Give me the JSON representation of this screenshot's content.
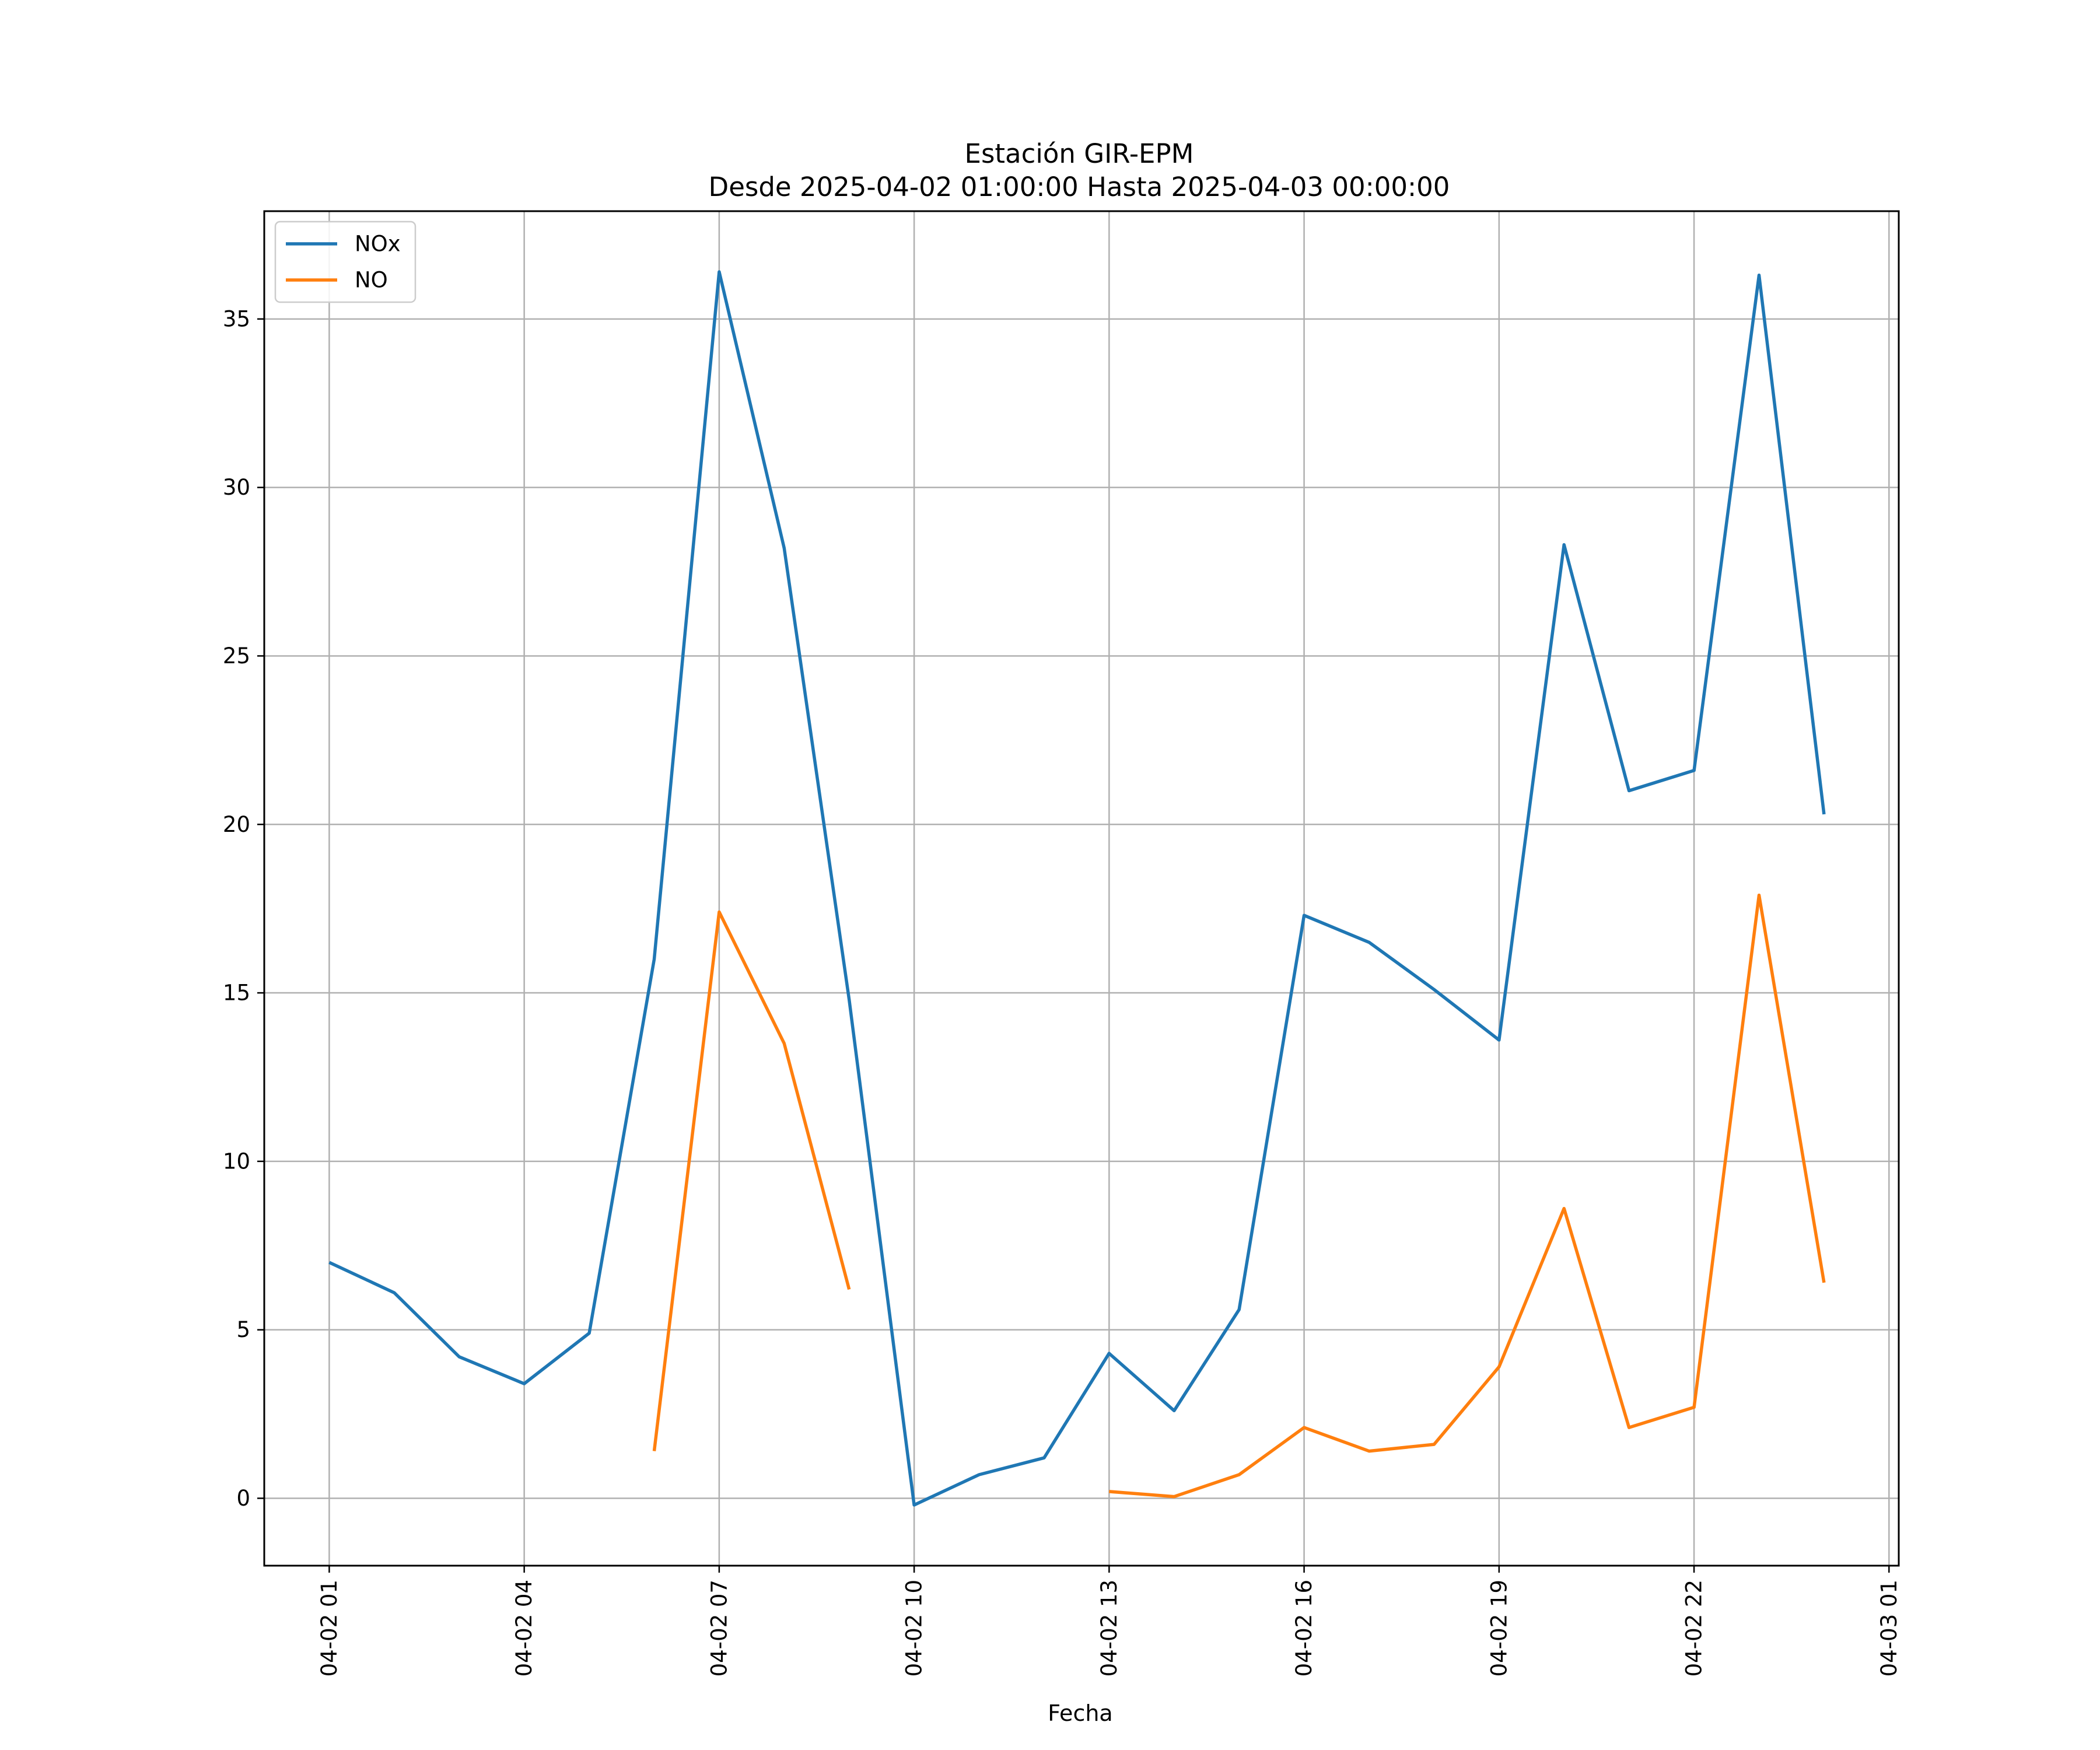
{
  "chart_data": {
    "type": "line",
    "title": "Estación GIR-EPM",
    "subtitle": "Desde 2025-04-02 01:00:00 Hasta 2025-04-03 00:00:00",
    "xlabel": "Fecha",
    "ylabel": "",
    "x": [
      "2025-04-02 01:00",
      "2025-04-02 02:00",
      "2025-04-02 03:00",
      "2025-04-02 04:00",
      "2025-04-02 05:00",
      "2025-04-02 06:00",
      "2025-04-02 07:00",
      "2025-04-02 08:00",
      "2025-04-02 09:00",
      "2025-04-02 10:00",
      "2025-04-02 11:00",
      "2025-04-02 12:00",
      "2025-04-02 13:00",
      "2025-04-02 14:00",
      "2025-04-02 15:00",
      "2025-04-02 16:00",
      "2025-04-02 17:00",
      "2025-04-02 18:00",
      "2025-04-02 19:00",
      "2025-04-02 20:00",
      "2025-04-02 21:00",
      "2025-04-02 22:00",
      "2025-04-02 23:00",
      "2025-04-03 00:00"
    ],
    "series": [
      {
        "name": "NOx",
        "color": "#1f77b4",
        "values": [
          7.0,
          6.1,
          4.2,
          3.4,
          4.9,
          16.0,
          36.4,
          28.2,
          14.8,
          -0.2,
          0.7,
          1.2,
          4.3,
          2.6,
          5.6,
          17.3,
          16.5,
          15.1,
          13.6,
          28.3,
          21.0,
          21.6,
          36.3,
          20.3
        ]
      },
      {
        "name": "NO",
        "color": "#ff7f0e",
        "values": [
          null,
          null,
          null,
          null,
          null,
          1.4,
          17.4,
          13.5,
          6.2,
          null,
          null,
          null,
          0.2,
          0.05,
          0.7,
          2.1,
          1.4,
          1.6,
          3.9,
          8.6,
          2.1,
          2.7,
          17.9,
          6.4
        ]
      }
    ],
    "x_ticks": [
      "04-02 01",
      "04-02 04",
      "04-02 07",
      "04-02 10",
      "04-02 13",
      "04-02 16",
      "04-02 19",
      "04-02 22",
      "04-03 01"
    ],
    "y_ticks": [
      "0",
      "5",
      "10",
      "15",
      "20",
      "25",
      "30",
      "35"
    ],
    "y_tick_values": [
      0,
      5,
      10,
      15,
      20,
      25,
      30,
      35
    ],
    "xlim": [
      "2025-04-02 00:00",
      "2025-04-03 01:09"
    ],
    "ylim": [
      -2.0,
      38.2
    ],
    "grid": true,
    "legend_position": "upper-left",
    "grid_color": "#b0b0b0"
  }
}
